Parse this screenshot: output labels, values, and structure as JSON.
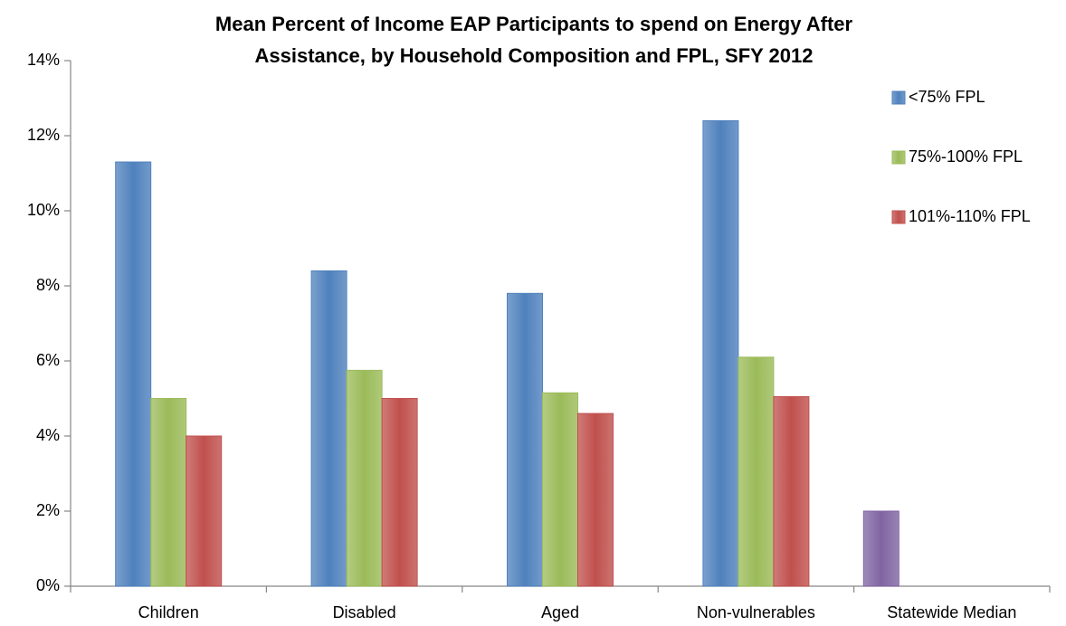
{
  "chart_data": {
    "type": "bar",
    "title": [
      "Mean Percent of Income EAP Participants to spend on Energy After",
      "Assistance, by Household Composition and FPL, SFY 2012"
    ],
    "categories": [
      "Children",
      "Disabled",
      "Aged",
      "Non-vulnerables",
      "Statewide Median"
    ],
    "series": [
      {
        "name": "<75% FPL",
        "color": "#4f81bd",
        "values": [
          11.3,
          8.4,
          7.8,
          12.4,
          null
        ]
      },
      {
        "name": "75%-100% FPL",
        "color": "#9bbb59",
        "values": [
          5.0,
          5.75,
          5.15,
          6.1,
          null
        ]
      },
      {
        "name": "101%-110% FPL",
        "color": "#c0504d",
        "values": [
          4.0,
          5.0,
          4.6,
          5.05,
          null
        ]
      },
      {
        "color": "#8064a2",
        "values": [
          null,
          null,
          null,
          null,
          2.0
        ]
      }
    ],
    "ylim": [
      0,
      14
    ],
    "yticks": [
      {
        "value": 0,
        "label": "0%"
      },
      {
        "value": 2,
        "label": "2%"
      },
      {
        "value": 4,
        "label": "4%"
      },
      {
        "value": 6,
        "label": "6%"
      },
      {
        "value": 8,
        "label": "8%"
      },
      {
        "value": 10,
        "label": "10%"
      },
      {
        "value": 12,
        "label": "12%"
      },
      {
        "value": 14,
        "label": "14%"
      }
    ],
    "grid": false,
    "legend": "right"
  }
}
